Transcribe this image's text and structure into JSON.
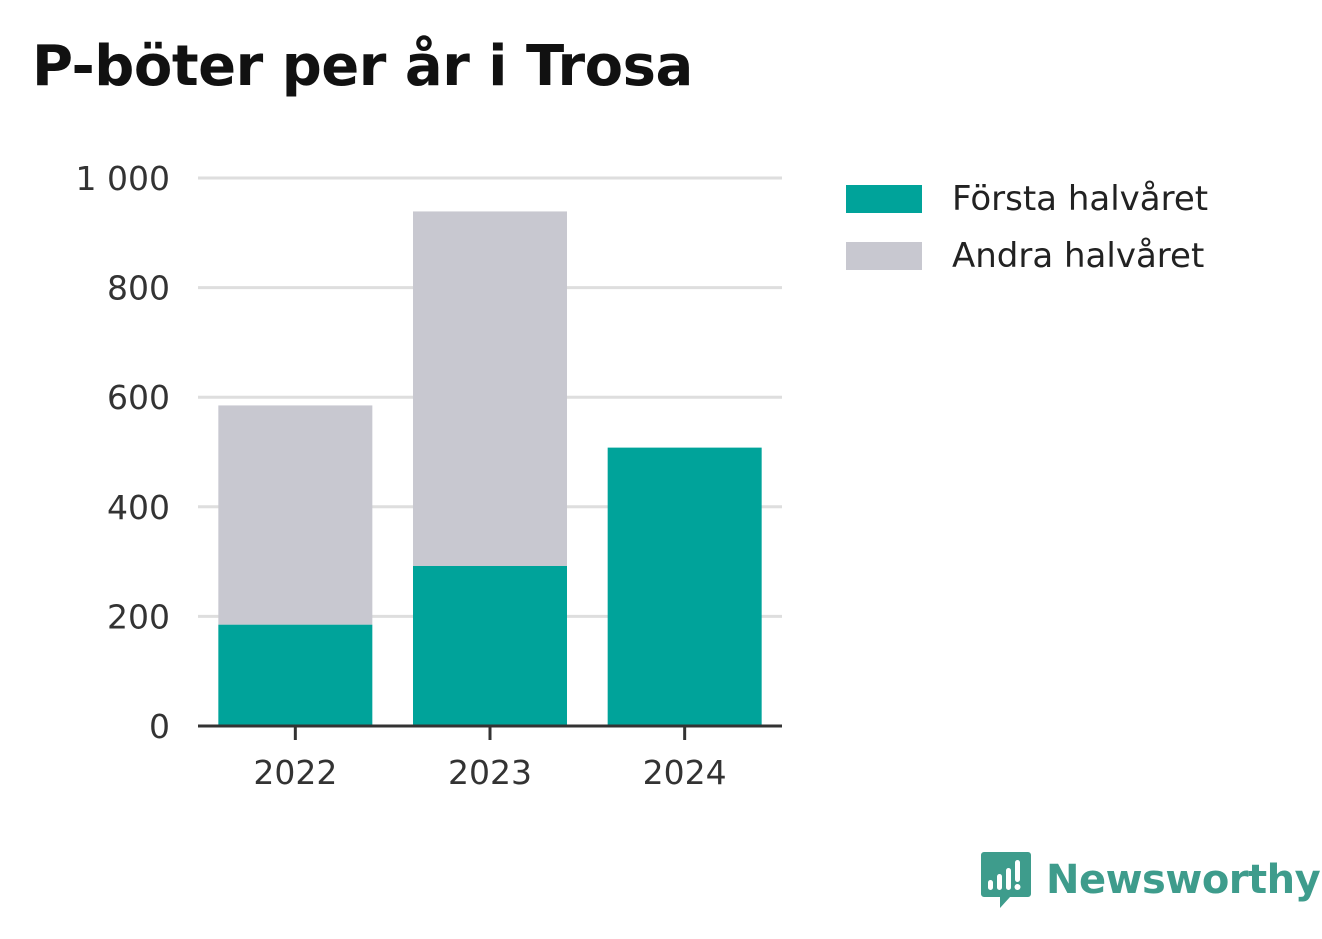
{
  "chart_data": {
    "type": "bar",
    "stacked": true,
    "title": "P-böter per år i Trosa",
    "categories": [
      "2022",
      "2023",
      "2024"
    ],
    "series": [
      {
        "name": "Första halvåret",
        "color": "#00a39a",
        "values": [
          185,
          292,
          508
        ]
      },
      {
        "name": "Andra halvåret",
        "color": "#c8c8d0",
        "values": [
          400,
          647,
          0
        ]
      }
    ],
    "ylim": [
      0,
      1000
    ],
    "yticks": [
      0,
      200,
      400,
      600,
      800,
      1000
    ],
    "ytick_labels": [
      "0",
      "200",
      "400",
      "600",
      "800",
      "1 000"
    ],
    "grid": true,
    "legend_position": "right"
  },
  "brand": {
    "name": "Newsworthy",
    "icon": "newsworthy-logo-icon",
    "color": "#3e9c8c"
  }
}
